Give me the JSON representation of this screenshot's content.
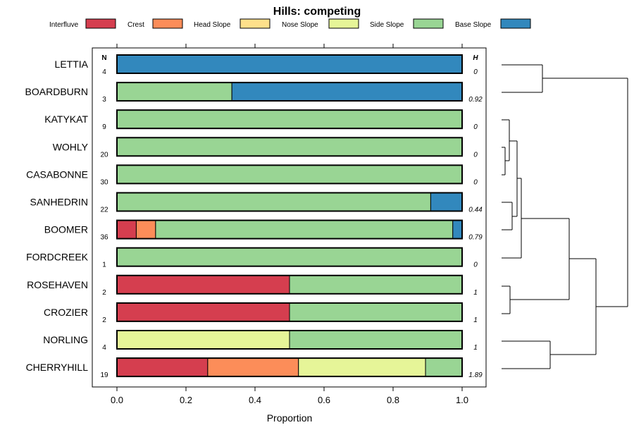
{
  "chart_data": {
    "type": "bar",
    "orientation": "horizontal",
    "stacked": true,
    "title": "Hills: competing",
    "xlabel": "Proportion",
    "ylabel": "",
    "xlim": [
      0,
      1
    ],
    "xticks": [
      "0.0",
      "0.2",
      "0.4",
      "0.6",
      "0.8",
      "1.0"
    ],
    "xtick_values": [
      0,
      0.2,
      0.4,
      0.6,
      0.8,
      1.0
    ],
    "n_header": "N",
    "h_header": "H",
    "series": [
      {
        "name": "Interfluve",
        "color": "#D53E4F"
      },
      {
        "name": "Crest",
        "color": "#FC8D59"
      },
      {
        "name": "Head Slope",
        "color": "#FEE08B"
      },
      {
        "name": "Nose Slope",
        "color": "#E6F598"
      },
      {
        "name": "Side Slope",
        "color": "#99D594"
      },
      {
        "name": "Base Slope",
        "color": "#3288BD"
      }
    ],
    "rows": [
      {
        "label": "LETTIA",
        "n": "4",
        "h": "0",
        "values": [
          0,
          0,
          0,
          0,
          0,
          1.0
        ]
      },
      {
        "label": "BOARDBURN",
        "n": "3",
        "h": "0.92",
        "values": [
          0,
          0,
          0,
          0,
          0.333,
          0.667
        ]
      },
      {
        "label": "KATYKAT",
        "n": "9",
        "h": "0",
        "values": [
          0,
          0,
          0,
          0,
          1.0,
          0
        ]
      },
      {
        "label": "WOHLY",
        "n": "20",
        "h": "0",
        "values": [
          0,
          0,
          0,
          0,
          1.0,
          0
        ]
      },
      {
        "label": "CASABONNE",
        "n": "30",
        "h": "0",
        "values": [
          0,
          0,
          0,
          0,
          1.0,
          0
        ]
      },
      {
        "label": "SANHEDRIN",
        "n": "22",
        "h": "0.44",
        "values": [
          0,
          0,
          0,
          0,
          0.909,
          0.091
        ]
      },
      {
        "label": "BOOMER",
        "n": "36",
        "h": "0.79",
        "values": [
          0.056,
          0.056,
          0,
          0,
          0.861,
          0.027
        ]
      },
      {
        "label": "FORDCREEK",
        "n": "1",
        "h": "0",
        "values": [
          0,
          0,
          0,
          0,
          1.0,
          0
        ]
      },
      {
        "label": "ROSEHAVEN",
        "n": "2",
        "h": "1",
        "values": [
          0.5,
          0,
          0,
          0,
          0.5,
          0
        ]
      },
      {
        "label": "CROZIER",
        "n": "2",
        "h": "1",
        "values": [
          0.5,
          0,
          0,
          0,
          0.5,
          0
        ]
      },
      {
        "label": "NORLING",
        "n": "4",
        "h": "1",
        "values": [
          0,
          0,
          0,
          0.5,
          0.5,
          0
        ]
      },
      {
        "label": "CHERRYHILL",
        "n": "19",
        "h": "1.89",
        "values": [
          0.263,
          0.263,
          0,
          0.368,
          0.106,
          0
        ]
      }
    ],
    "legend_position": "top",
    "dendrogram": "right"
  }
}
